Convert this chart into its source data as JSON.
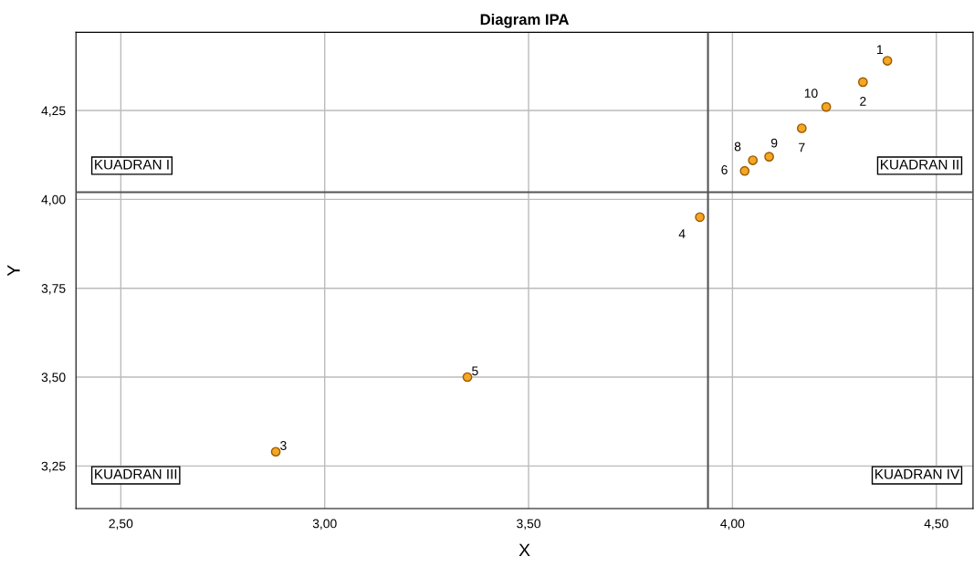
{
  "chart_data": {
    "type": "scatter",
    "title": "Diagram IPA",
    "xlabel": "X",
    "ylabel": "Y",
    "x": [
      4.38,
      4.32,
      2.88,
      3.92,
      3.35,
      4.03,
      4.17,
      4.05,
      4.09,
      4.23
    ],
    "values": [
      4.39,
      4.33,
      3.29,
      3.95,
      3.5,
      4.08,
      4.2,
      4.11,
      4.12,
      4.26
    ],
    "color": "#f5a623",
    "marker": "circle",
    "xlim": [
      2.39,
      4.59
    ],
    "ylim": [
      3.13,
      4.47
    ],
    "xticks": [
      {
        "value": 2.5,
        "label": "2,50"
      },
      {
        "value": 3.0,
        "label": "3,00"
      },
      {
        "value": 3.5,
        "label": "3,50"
      },
      {
        "value": 4.0,
        "label": "4,00"
      },
      {
        "value": 4.5,
        "label": "4,50"
      }
    ],
    "yticks": [
      {
        "value": 3.25,
        "label": "3,25"
      },
      {
        "value": 3.5,
        "label": "3,50"
      },
      {
        "value": 3.75,
        "label": "3,75"
      },
      {
        "value": 4.0,
        "label": "4,00"
      },
      {
        "value": 4.25,
        "label": "4,25"
      }
    ],
    "grid": true,
    "ref_lines": [
      {
        "axis": "x",
        "value": 3.94,
        "color": "#555555"
      },
      {
        "axis": "y",
        "value": 4.02,
        "color": "#555555"
      }
    ],
    "annotations": [
      {
        "text": "1",
        "x": 4.38,
        "y": 4.39
      },
      {
        "text": "2",
        "x": 4.32,
        "y": 4.33
      },
      {
        "text": "3",
        "x": 2.88,
        "y": 3.29
      },
      {
        "text": "4",
        "x": 3.92,
        "y": 3.95
      },
      {
        "text": "5",
        "x": 3.35,
        "y": 3.5
      },
      {
        "text": "6",
        "x": 4.03,
        "y": 4.08
      },
      {
        "text": "7",
        "x": 4.17,
        "y": 4.2
      },
      {
        "text": "8",
        "x": 4.05,
        "y": 4.11
      },
      {
        "text": "9",
        "x": 4.09,
        "y": 4.12
      },
      {
        "text": "10",
        "x": 4.23,
        "y": 4.26
      },
      "KUADRAN I",
      "KUADRAN II",
      "KUADRAN III",
      "KUADRAN IV"
    ]
  }
}
